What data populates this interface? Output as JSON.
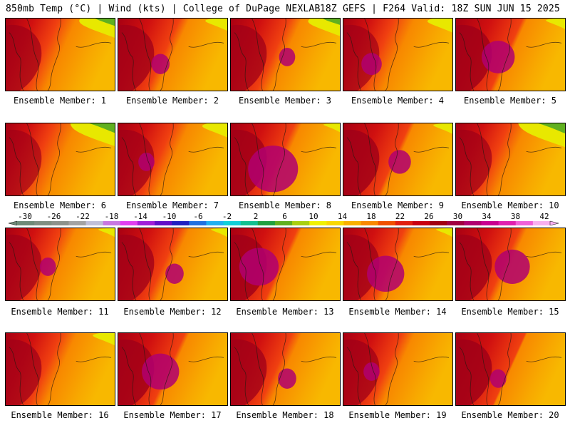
{
  "header": {
    "left": "850mb Temp (°C) | Wind (kts) | College of DuPage NEXLAB",
    "right": "18Z GEFS | F264 Valid: 18Z SUN JUN 15 2025"
  },
  "colorbar": {
    "labels": [
      "-30",
      "-26",
      "-22",
      "-18",
      "-14",
      "-10",
      "-6",
      "-2",
      "2",
      "6",
      "10",
      "14",
      "18",
      "22",
      "26",
      "30",
      "34",
      "38",
      "42"
    ],
    "colors": [
      "#6e8a78",
      "#7f8f82",
      "#8c928c",
      "#a3a3a3",
      "#c0c0d8",
      "#c878e0",
      "#e040f0",
      "#a020d8",
      "#6010c8",
      "#2020c0",
      "#2070e0",
      "#20b0f0",
      "#10d0d8",
      "#10c090",
      "#20a040",
      "#60b020",
      "#a8d010",
      "#f0f000",
      "#f8d800",
      "#f8b000",
      "#f88800",
      "#f05000",
      "#e02010",
      "#c80010",
      "#a00010",
      "#a00040",
      "#b00070",
      "#c80090",
      "#e020b0",
      "#f060d8",
      "#f8b0f0"
    ]
  },
  "panels": [
    {
      "caption": "Ensemble Member: 1",
      "hot": 0.55,
      "cool": 0.7,
      "pink": 0.0
    },
    {
      "caption": "Ensemble Member: 2",
      "hot": 0.7,
      "cool": 0.3,
      "pink": 0.1
    },
    {
      "caption": "Ensemble Member: 3",
      "hot": 0.65,
      "cool": 0.6,
      "pink": 0.05
    },
    {
      "caption": "Ensemble Member: 4",
      "hot": 0.5,
      "cool": 0.4,
      "pink": 0.15
    },
    {
      "caption": "Ensemble Member: 5",
      "hot": 0.8,
      "cool": 0.2,
      "pink": 0.45
    },
    {
      "caption": "Ensemble Member: 6",
      "hot": 0.45,
      "cool": 0.9,
      "pink": 0.0
    },
    {
      "caption": "Ensemble Member: 7",
      "hot": 0.6,
      "cool": 0.4,
      "pink": 0.05
    },
    {
      "caption": "Ensemble Member: 8",
      "hot": 0.75,
      "cool": 0.1,
      "pink": 0.85
    },
    {
      "caption": "Ensemble Member: 9",
      "hot": 0.8,
      "cool": 0.2,
      "pink": 0.2
    },
    {
      "caption": "Ensemble Member: 10",
      "hot": 0.55,
      "cool": 0.95,
      "pink": 0.0
    },
    {
      "caption": "Ensemble Member: 11",
      "hot": 0.6,
      "cool": 0.1,
      "pink": 0.05
    },
    {
      "caption": "Ensemble Member: 12",
      "hot": 0.7,
      "cool": 0.1,
      "pink": 0.1
    },
    {
      "caption": "Ensemble Member: 13",
      "hot": 0.8,
      "cool": 0.0,
      "pink": 0.6
    },
    {
      "caption": "Ensemble Member: 14",
      "hot": 0.7,
      "cool": 0.1,
      "pink": 0.55
    },
    {
      "caption": "Ensemble Member: 15",
      "hot": 0.75,
      "cool": 0.05,
      "pink": 0.5
    },
    {
      "caption": "Ensemble Member: 16",
      "hot": 0.6,
      "cool": 0.3,
      "pink": 0.0
    },
    {
      "caption": "Ensemble Member: 17",
      "hot": 0.8,
      "cool": 0.05,
      "pink": 0.55
    },
    {
      "caption": "Ensemble Member: 18",
      "hot": 0.7,
      "cool": 0.0,
      "pink": 0.1
    },
    {
      "caption": "Ensemble Member: 19",
      "hot": 0.65,
      "cool": 0.0,
      "pink": 0.05
    },
    {
      "caption": "Ensemble Member: 20",
      "hot": 0.85,
      "cool": 0.0,
      "pink": 0.05
    }
  ]
}
